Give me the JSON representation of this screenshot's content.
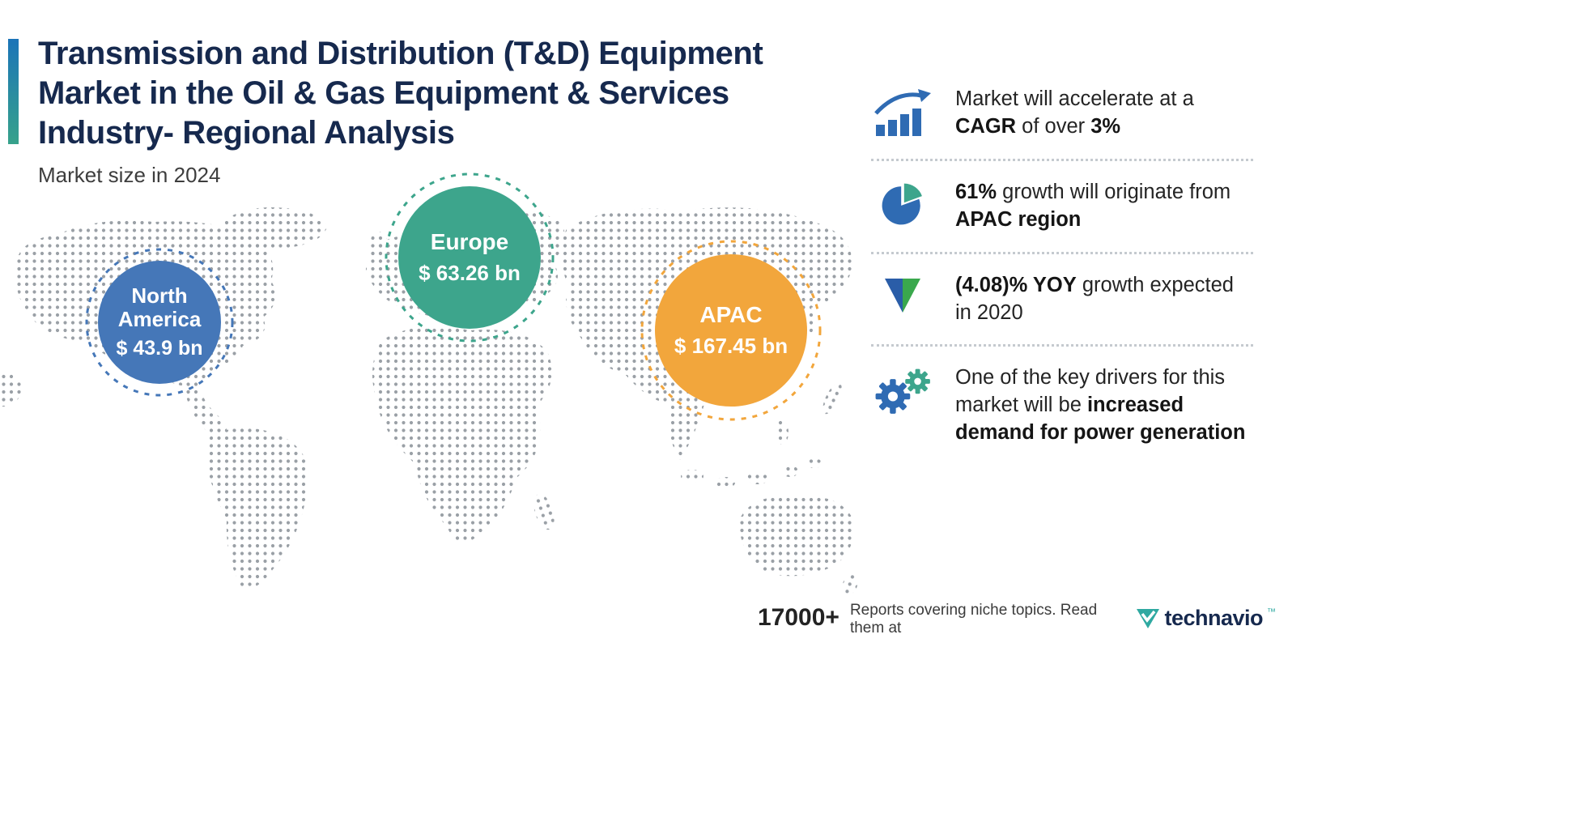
{
  "chart_data": {
    "type": "bubble_map",
    "title": "Market size in 2024",
    "regions": [
      "North America",
      "Europe",
      "APAC"
    ],
    "values_bn_usd": [
      43.9,
      63.26,
      167.45
    ],
    "value_labels": [
      "$ 43.9 bn",
      "$ 63.26 bn",
      "$ 167.45 bn"
    ],
    "unit": "USD billions",
    "annotations": [
      "Market will accelerate at a CAGR of over 3%",
      "61% growth will originate from APAC region",
      "(4.08)% YOY growth expected in 2020",
      "One of the key drivers for this market will be increased demand for power generation"
    ]
  },
  "header": {
    "title_lines": [
      "Transmission and Distribution (T&D) Equipment",
      "Market in the Oil & Gas Equipment & Services",
      "Industry- Regional Analysis"
    ],
    "subtitle": "Market size in 2024"
  },
  "map": {
    "bubbles": [
      {
        "region": "North America",
        "value": "$ 43.9 bn",
        "color": "#4577b8"
      },
      {
        "region": "Europe",
        "value": "$ 63.26 bn",
        "color": "#3da58c"
      },
      {
        "region": "APAC",
        "value": "$ 167.45 bn",
        "color": "#f2a63c"
      }
    ]
  },
  "facts": [
    {
      "icon": "bar-chart-growth-icon",
      "segments": [
        {
          "text": "Market will accelerate at a ",
          "bold": false
        },
        {
          "text": "CAGR",
          "bold": true
        },
        {
          "text": " of over ",
          "bold": false
        },
        {
          "text": "3%",
          "bold": true
        }
      ]
    },
    {
      "icon": "pie-chart-icon",
      "segments": [
        {
          "text": "61%",
          "bold": true
        },
        {
          "text": " growth will originate from ",
          "bold": false
        },
        {
          "text": "APAC region",
          "bold": true
        }
      ]
    },
    {
      "icon": "down-arrow-icon",
      "segments": [
        {
          "text": "(4.08)% YOY",
          "bold": true
        },
        {
          "text": " growth expected in 2020",
          "bold": false
        }
      ]
    },
    {
      "icon": "gears-icon",
      "segments": [
        {
          "text": "One of the key drivers for this market will be ",
          "bold": false
        },
        {
          "text": "increased demand for power generation",
          "bold": true
        }
      ]
    }
  ],
  "footer": {
    "reports_count": "17000+",
    "tagline": "Reports covering niche topics. Read them at",
    "brand": "technavio",
    "trademark": "™"
  },
  "colors": {
    "title_navy": "#16294e",
    "bubble_blue": "#4577b8",
    "bubble_teal": "#3da58c",
    "bubble_orange": "#f2a63c",
    "icon_blue": "#2f6bb3",
    "icon_green": "#3aa84d",
    "brand_teal": "#2fa9a1",
    "map_dot_gray": "#9aa0a6",
    "accent_gradient_top": "#1b74b8",
    "accent_gradient_bottom": "#37a28b"
  }
}
